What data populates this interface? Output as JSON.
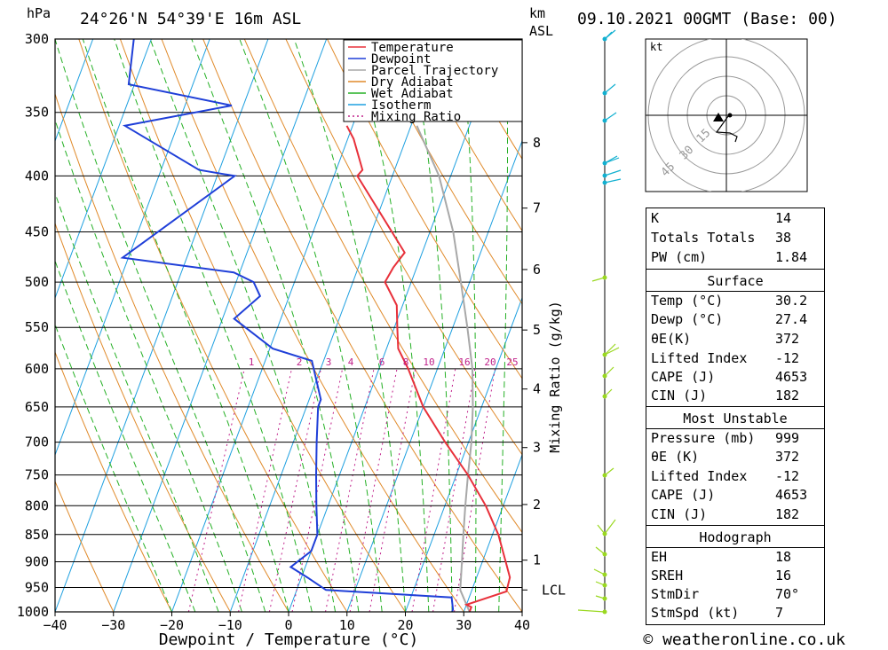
{
  "header": {
    "location": "24°26'N  54°39'E  16m  ASL",
    "datetime": "09.10.2021  00GMT  (Base: 00)",
    "left_unit": "hPa",
    "km_label": "km",
    "asl_label": "ASL"
  },
  "legend": [
    "Temperature",
    "Dewpoint",
    "Parcel Trajectory",
    "Dry Adiabat",
    "Wet Adiabat",
    "Isotherm",
    "Mixing Ratio"
  ],
  "colors": {
    "temperature": "#e8303a",
    "dewpoint": "#1f3fd8",
    "parcel": "#a8a8a8",
    "dry_adiabat": "#e08a2a",
    "wet_adiabat": "#25b025",
    "isotherm": "#1ea0e0",
    "mixing_ratio": "#c0208a",
    "wind_top": "#12b0d0",
    "wind_bottom": "#9ad820"
  },
  "chart_data": {
    "type": "skew-t",
    "xlabel": "Dewpoint / Temperature (°C)",
    "right_axis_label": "Mixing Ratio (g/kg)",
    "x_ticks": [
      -40,
      -30,
      -20,
      -10,
      0,
      10,
      20,
      30,
      40
    ],
    "pressure_levels": [
      300,
      350,
      400,
      450,
      500,
      550,
      600,
      650,
      700,
      750,
      800,
      850,
      900,
      950,
      1000
    ],
    "km_ticks": [
      {
        "km": 1,
        "p": 897
      },
      {
        "km": 2,
        "p": 798
      },
      {
        "km": 3,
        "p": 708
      },
      {
        "km": 4,
        "p": 626
      },
      {
        "km": 5,
        "p": 553
      },
      {
        "km": 6,
        "p": 487
      },
      {
        "km": 7,
        "p": 428
      },
      {
        "km": 8,
        "p": 373
      }
    ],
    "lcl": {
      "label": "LCL",
      "p": 955
    },
    "mixing_ratio_labels": [
      "1",
      "2",
      "3",
      "4",
      "6",
      "8",
      "10",
      "16",
      "20",
      "25"
    ],
    "temperature": [
      {
        "p": 1000,
        "t": 31
      },
      {
        "p": 990,
        "t": 31
      },
      {
        "p": 985,
        "t": 30
      },
      {
        "p": 958,
        "t": 36
      },
      {
        "p": 930,
        "t": 35.7
      },
      {
        "p": 900,
        "t": 34
      },
      {
        "p": 850,
        "t": 31
      },
      {
        "p": 800,
        "t": 27
      },
      {
        "p": 750,
        "t": 22
      },
      {
        "p": 700,
        "t": 16
      },
      {
        "p": 650,
        "t": 10
      },
      {
        "p": 600,
        "t": 5
      },
      {
        "p": 575,
        "t": 2
      },
      {
        "p": 550,
        "t": 0.5
      },
      {
        "p": 525,
        "t": -1
      },
      {
        "p": 500,
        "t": -4.5
      },
      {
        "p": 485,
        "t": -4
      },
      {
        "p": 470,
        "t": -3
      },
      {
        "p": 450,
        "t": -6.5
      },
      {
        "p": 400,
        "t": -16
      },
      {
        "p": 395,
        "t": -15.5
      },
      {
        "p": 370,
        "t": -19
      },
      {
        "p": 360,
        "t": -21
      }
    ],
    "dewpoint": [
      {
        "p": 1000,
        "t": 28
      },
      {
        "p": 995,
        "t": 28
      },
      {
        "p": 970,
        "t": 27
      },
      {
        "p": 955,
        "t": 5
      },
      {
        "p": 930,
        "t": 1
      },
      {
        "p": 910,
        "t": -2.5
      },
      {
        "p": 880,
        "t": 0
      },
      {
        "p": 850,
        "t": 0
      },
      {
        "p": 800,
        "t": -2
      },
      {
        "p": 750,
        "t": -4
      },
      {
        "p": 700,
        "t": -6
      },
      {
        "p": 650,
        "t": -8
      },
      {
        "p": 640,
        "t": -8
      },
      {
        "p": 590,
        "t": -12
      },
      {
        "p": 575,
        "t": -19.5
      },
      {
        "p": 540,
        "t": -28
      },
      {
        "p": 515,
        "t": -25
      },
      {
        "p": 500,
        "t": -27
      },
      {
        "p": 490,
        "t": -31
      },
      {
        "p": 475,
        "t": -51
      },
      {
        "p": 400,
        "t": -37
      },
      {
        "p": 395,
        "t": -43.5
      },
      {
        "p": 360,
        "t": -59
      },
      {
        "p": 345,
        "t": -42
      },
      {
        "p": 330,
        "t": -61
      },
      {
        "p": 300,
        "t": -63
      }
    ],
    "parcel": [
      {
        "p": 1000,
        "t": 31
      },
      {
        "p": 955,
        "t": 28
      },
      {
        "p": 900,
        "t": 26.5
      },
      {
        "p": 850,
        "t": 25
      },
      {
        "p": 800,
        "t": 23.5
      },
      {
        "p": 750,
        "t": 22
      },
      {
        "p": 700,
        "t": 20.5
      },
      {
        "p": 650,
        "t": 18.5
      },
      {
        "p": 600,
        "t": 16
      },
      {
        "p": 550,
        "t": 12.5
      },
      {
        "p": 500,
        "t": 8.5
      },
      {
        "p": 450,
        "t": 4
      },
      {
        "p": 400,
        "t": -2
      },
      {
        "p": 360,
        "t": -9
      }
    ]
  },
  "hodograph": {
    "unit_label": "kt",
    "rings": [
      "15",
      "30",
      "45"
    ]
  },
  "indices": [
    {
      "k": "K",
      "v": "14"
    },
    {
      "k": "Totals Totals",
      "v": "38"
    },
    {
      "k": "PW (cm)",
      "v": "1.84"
    }
  ],
  "surface": {
    "title": "Surface",
    "rows": [
      {
        "k": "Temp (°C)",
        "v": "30.2"
      },
      {
        "k": "Dewp (°C)",
        "v": "27.4"
      },
      {
        "k": "θE(K)",
        "v": "372"
      },
      {
        "k": "Lifted Index",
        "v": "-12"
      },
      {
        "k": "CAPE (J)",
        "v": "4653"
      },
      {
        "k": "CIN (J)",
        "v": "182"
      }
    ]
  },
  "most_unstable": {
    "title": "Most Unstable",
    "rows": [
      {
        "k": "Pressure (mb)",
        "v": "999"
      },
      {
        "k": "θE (K)",
        "v": "372"
      },
      {
        "k": "Lifted Index",
        "v": "-12"
      },
      {
        "k": "CAPE (J)",
        "v": "4653"
      },
      {
        "k": "CIN (J)",
        "v": "182"
      }
    ]
  },
  "hodograph_stats": {
    "title": "Hodograph",
    "rows": [
      {
        "k": "EH",
        "v": "18"
      },
      {
        "k": "SREH",
        "v": "16"
      },
      {
        "k": "StmDir",
        "v": "70°"
      },
      {
        "k": "StmSpd (kt)",
        "v": "7"
      }
    ]
  },
  "footer": {
    "credit": "© weatheronline.co.uk"
  }
}
